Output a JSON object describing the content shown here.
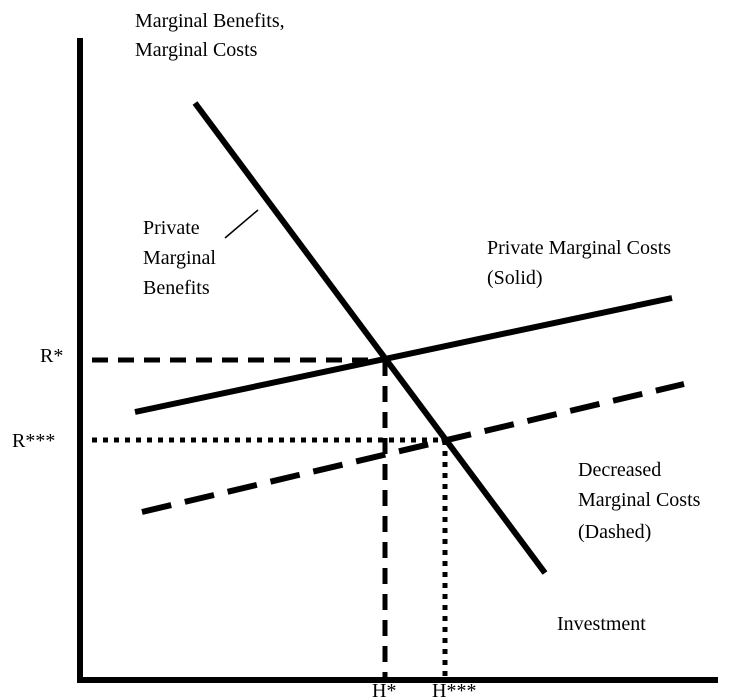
{
  "y_axis_label": [
    "Marginal Benefits,",
    "Marginal Costs"
  ],
  "x_axis_label": "Investment",
  "curves": {
    "benefits": [
      "Private",
      "Marginal",
      "Benefits"
    ],
    "private_costs": [
      "Private Marginal Costs",
      "(Solid)"
    ],
    "decreased_costs": [
      "Decreased",
      "Marginal Costs",
      "(Dashed)"
    ]
  },
  "levels": {
    "r_star": "R*",
    "r_triple_star": "R***"
  },
  "quantities": {
    "h_star": "H*",
    "h_triple_star": "H***"
  }
}
